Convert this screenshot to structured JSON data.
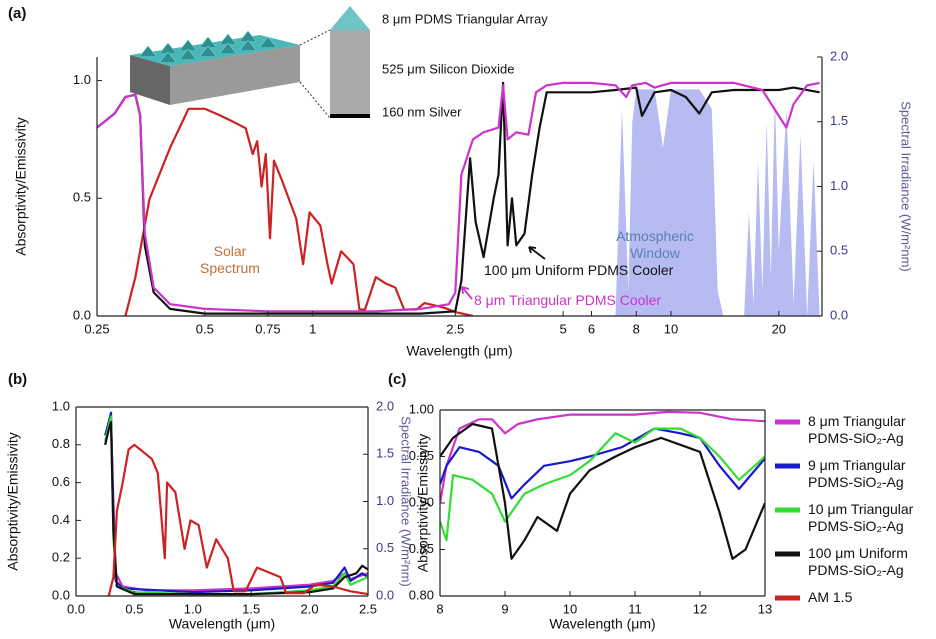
{
  "chart_data": [
    {
      "type": "line",
      "panel_label": "(a)",
      "x_label": "Wavelength (μm)",
      "y_label": "Absorptivity/Emissivity",
      "y2_label": "Spectral Irradiance (W/m²nm)",
      "xscale": "log",
      "xlim": [
        0.25,
        26.4
      ],
      "xticks": [
        0.25,
        0.5,
        0.75,
        1,
        2.5,
        5,
        6,
        8,
        10,
        20
      ],
      "ylim": [
        0,
        1.1
      ],
      "yticks": [
        {
          "value": 0,
          "label": "0.0"
        },
        0.5,
        {
          "value": 1,
          "label": "1.0"
        }
      ],
      "y2lim": [
        0,
        2
      ],
      "y2ticks": [
        {
          "value": 0,
          "label": "0.0"
        },
        0.5,
        {
          "value": 1,
          "label": "1.0"
        },
        1.5,
        {
          "value": 2,
          "label": "2.0"
        }
      ],
      "inset_labels": [
        "8 μm PDMS Triangular Array",
        "525 μm Silicon Dioxide",
        "160 nm Silver"
      ],
      "series": [
        {
          "name": "Atmospheric Window",
          "color": "#a9b0f0",
          "style": "area",
          "axis": "y2",
          "x": [
            7,
            7.3,
            7.6,
            7.8,
            8,
            9,
            9.5,
            10,
            12,
            13,
            13.5,
            14,
            16,
            16.5,
            17,
            17.5,
            18,
            18.5,
            19,
            19.5,
            20,
            21,
            22,
            23,
            24,
            25,
            26
          ],
          "values": [
            0,
            1.6,
            0.2,
            1.5,
            1.75,
            1.75,
            1.3,
            1.75,
            1.75,
            1.6,
            0.2,
            0,
            0,
            0.8,
            0.1,
            1.2,
            0.2,
            1.5,
            0.3,
            1.7,
            0.5,
            1.6,
            0.1,
            1.4,
            0,
            1.2,
            0
          ]
        },
        {
          "name": "Solar Spectrum",
          "color": "#cc2222",
          "axis": "y2",
          "x": [
            0.3,
            0.32,
            0.35,
            0.4,
            0.45,
            0.5,
            0.55,
            0.6,
            0.65,
            0.68,
            0.7,
            0.72,
            0.74,
            0.76,
            0.78,
            0.82,
            0.9,
            0.94,
            0.98,
            1.05,
            1.1,
            1.13,
            1.2,
            1.25,
            1.3,
            1.35,
            1.4,
            1.5,
            1.6,
            1.7,
            1.8,
            1.95,
            2.05,
            2.2,
            2.35,
            2.5,
            2.8
          ],
          "values": [
            0,
            0.3,
            0.9,
            1.3,
            1.6,
            1.6,
            1.55,
            1.5,
            1.45,
            1.25,
            1.35,
            1.0,
            1.25,
            0.6,
            1.2,
            1.05,
            0.75,
            0.4,
            0.8,
            0.7,
            0.4,
            0.25,
            0.5,
            0.45,
            0.4,
            0.05,
            0.05,
            0.3,
            0.25,
            0.22,
            0.05,
            0.05,
            0.1,
            0.08,
            0.06,
            0.03,
            0
          ]
        },
        {
          "name": "100 μm Uniform PDMS Cooler",
          "color": "#111111",
          "x": [
            0.25,
            0.28,
            0.3,
            0.32,
            0.33,
            0.34,
            0.36,
            0.4,
            0.5,
            1,
            1.5,
            2,
            2.5,
            2.6,
            2.7,
            2.75,
            2.85,
            3,
            3.2,
            3.3,
            3.4,
            3.5,
            3.6,
            3.7,
            3.9,
            4.1,
            4.3,
            4.5,
            5,
            6,
            7,
            8,
            8.3,
            9,
            10,
            11,
            12,
            13,
            15,
            20,
            22,
            26
          ],
          "values": [
            0.8,
            0.86,
            0.93,
            0.94,
            0.85,
            0.3,
            0.1,
            0.03,
            0.01,
            0.01,
            0.01,
            0.01,
            0.02,
            0.15,
            0.5,
            0.67,
            0.4,
            0.25,
            0.5,
            0.6,
            0.99,
            0.3,
            0.5,
            0.3,
            0.35,
            0.6,
            0.8,
            0.95,
            0.95,
            0.95,
            0.96,
            0.97,
            0.85,
            0.95,
            0.96,
            0.93,
            0.86,
            0.95,
            0.96,
            0.96,
            0.97,
            0.95
          ]
        },
        {
          "name": "8 μm Triangular PDMS Cooler",
          "color": "#cc33cc",
          "x": [
            0.25,
            0.28,
            0.3,
            0.32,
            0.33,
            0.34,
            0.36,
            0.4,
            0.5,
            0.75,
            1,
            1.5,
            2,
            2.4,
            2.5,
            2.6,
            2.8,
            3,
            3.3,
            3.4,
            3.5,
            3.7,
            4,
            4.2,
            4.5,
            5,
            6,
            7,
            7.5,
            7.8,
            8.5,
            9,
            10,
            12,
            15,
            18,
            20,
            21,
            22,
            24,
            26
          ],
          "values": [
            0.8,
            0.86,
            0.93,
            0.94,
            0.85,
            0.35,
            0.12,
            0.05,
            0.03,
            0.02,
            0.02,
            0.02,
            0.03,
            0.05,
            0.1,
            0.6,
            0.75,
            0.78,
            0.8,
            0.98,
            0.75,
            0.78,
            0.77,
            0.95,
            0.98,
            0.99,
            0.99,
            0.98,
            0.93,
            0.98,
            0.99,
            0.97,
            0.99,
            0.99,
            0.99,
            0.96,
            0.85,
            0.8,
            0.9,
            0.98,
            0.99
          ]
        }
      ]
    },
    {
      "type": "line",
      "panel_label": "(b)",
      "x_label": "Wavelength (μm)",
      "y_label": "Absorptivity/Emissivity",
      "y2_label": "Spectral Irradiance (W/m²nm)",
      "legend": "right",
      "xlim": [
        0,
        2.5
      ],
      "xticks": [
        {
          "value": 0,
          "label": "0.0"
        },
        0.5,
        {
          "value": 1,
          "label": "1.0"
        },
        1.5,
        {
          "value": 2,
          "label": "2.0"
        },
        2.5
      ],
      "ylim": [
        0,
        1
      ],
      "yticks": [
        {
          "value": 0,
          "label": "0.0"
        },
        0.2,
        0.4,
        0.6,
        0.8,
        {
          "value": 1,
          "label": "1.0"
        }
      ],
      "y2lim": [
        0,
        2
      ],
      "y2ticks": [
        {
          "value": 0,
          "label": "0.0"
        },
        0.5,
        {
          "value": 1,
          "label": "1.0"
        },
        1.5,
        {
          "value": 2,
          "label": "2.0"
        }
      ],
      "series": [
        {
          "name": "8 μm Triangular PDMS-SiO₂-Ag",
          "color": "#cc33cc",
          "x": [
            0.25,
            0.28,
            0.3,
            0.32,
            0.34,
            0.4,
            0.6,
            1,
            1.5,
            2,
            2.2,
            2.3,
            2.35,
            2.5
          ],
          "values": [
            0.8,
            0.9,
            0.93,
            0.5,
            0.12,
            0.05,
            0.03,
            0.03,
            0.04,
            0.06,
            0.08,
            0.12,
            0.09,
            0.12
          ]
        },
        {
          "name": "9 μm Triangular PDMS-SiO₂-Ag",
          "color": "#1a1acc",
          "x": [
            0.25,
            0.28,
            0.3,
            0.32,
            0.34,
            0.4,
            1,
            1.5,
            2,
            2.2,
            2.3,
            2.35,
            2.45,
            2.5
          ],
          "values": [
            0.85,
            0.92,
            0.97,
            0.4,
            0.08,
            0.04,
            0.02,
            0.03,
            0.05,
            0.07,
            0.15,
            0.08,
            0.12,
            0.1
          ]
        },
        {
          "name": "10 μm Triangular PDMS-SiO₂-Ag",
          "color": "#33dd33",
          "x": [
            0.25,
            0.28,
            0.3,
            0.32,
            0.35,
            0.5,
            1,
            1.5,
            2,
            2.2,
            2.3,
            2.35,
            2.5
          ],
          "values": [
            0.82,
            0.9,
            0.95,
            0.3,
            0.05,
            0.02,
            0.01,
            0.01,
            0.03,
            0.05,
            0.12,
            0.06,
            0.1
          ]
        },
        {
          "name": "100 μm Uniform PDMS-SiO₂-Ag",
          "color": "#111111",
          "x": [
            0.25,
            0.28,
            0.3,
            0.32,
            0.35,
            0.5,
            1,
            1.5,
            2,
            2.2,
            2.3,
            2.4,
            2.45,
            2.5
          ],
          "values": [
            0.8,
            0.88,
            0.92,
            0.35,
            0.05,
            0.01,
            0.01,
            0.01,
            0.02,
            0.04,
            0.1,
            0.12,
            0.16,
            0.14
          ]
        },
        {
          "name": "AM 1.5",
          "color": "#cc2222",
          "axis": "y2",
          "x": [
            0.28,
            0.32,
            0.35,
            0.4,
            0.45,
            0.5,
            0.55,
            0.6,
            0.65,
            0.7,
            0.72,
            0.76,
            0.78,
            0.85,
            0.93,
            0.98,
            1.05,
            1.12,
            1.2,
            1.3,
            1.35,
            1.45,
            1.55,
            1.65,
            1.75,
            1.8,
            1.95,
            2.05,
            2.2,
            2.35,
            2.5
          ],
          "values": [
            0,
            0.2,
            0.9,
            1.2,
            1.55,
            1.6,
            1.55,
            1.5,
            1.45,
            1.3,
            1.0,
            0.4,
            1.2,
            1.1,
            0.5,
            0.8,
            0.75,
            0.3,
            0.6,
            0.4,
            0.05,
            0.05,
            0.3,
            0.25,
            0.2,
            0.03,
            0.03,
            0.12,
            0.1,
            0.05,
            0.02
          ]
        }
      ]
    },
    {
      "type": "line",
      "panel_label": "(c)",
      "x_label": "Wavelength (μm)",
      "y_label": "Absorptivity/Emissivity",
      "xlim": [
        8,
        13
      ],
      "xticks": [
        8,
        9,
        10,
        11,
        12,
        13
      ],
      "ylim": [
        0.8,
        1
      ],
      "yticks": [
        {
          "value": 0.8,
          "label": "0.80"
        },
        0.85,
        {
          "value": 0.9,
          "label": "0.90"
        },
        0.95,
        {
          "value": 1,
          "label": "1.00"
        }
      ],
      "series": [
        {
          "color": "#cc33cc",
          "x": [
            8,
            8.1,
            8.3,
            8.6,
            8.8,
            9,
            9.2,
            9.5,
            10,
            11,
            11.5,
            12,
            12.5,
            13
          ],
          "values": [
            0.9,
            0.94,
            0.98,
            0.99,
            0.99,
            0.975,
            0.985,
            0.99,
            0.995,
            0.995,
            0.998,
            0.997,
            0.99,
            0.988
          ]
        },
        {
          "color": "#1a1acc",
          "x": [
            8,
            8.1,
            8.3,
            8.6,
            8.9,
            9.1,
            9.3,
            9.6,
            10,
            10.3,
            10.8,
            11.3,
            11.7,
            12,
            12.3,
            12.6,
            13
          ],
          "values": [
            0.92,
            0.94,
            0.96,
            0.955,
            0.94,
            0.905,
            0.92,
            0.94,
            0.945,
            0.95,
            0.96,
            0.98,
            0.975,
            0.97,
            0.94,
            0.915,
            0.948
          ]
        },
        {
          "color": "#33dd33",
          "x": [
            8,
            8.1,
            8.2,
            8.5,
            8.8,
            9,
            9.3,
            9.6,
            10,
            10.3,
            10.7,
            11,
            11.3,
            11.7,
            12,
            12.3,
            12.6,
            13
          ],
          "values": [
            0.88,
            0.86,
            0.93,
            0.925,
            0.91,
            0.88,
            0.91,
            0.92,
            0.93,
            0.945,
            0.975,
            0.965,
            0.98,
            0.98,
            0.97,
            0.95,
            0.925,
            0.95
          ]
        },
        {
          "color": "#111111",
          "x": [
            8,
            8.2,
            8.5,
            8.8,
            9,
            9.1,
            9.3,
            9.5,
            9.8,
            10,
            10.3,
            10.7,
            11,
            11.4,
            11.8,
            12,
            12.3,
            12.5,
            12.7,
            13
          ],
          "values": [
            0.95,
            0.97,
            0.985,
            0.98,
            0.9,
            0.84,
            0.86,
            0.885,
            0.87,
            0.91,
            0.935,
            0.95,
            0.96,
            0.97,
            0.96,
            0.955,
            0.89,
            0.84,
            0.85,
            0.9
          ]
        }
      ]
    }
  ]
}
